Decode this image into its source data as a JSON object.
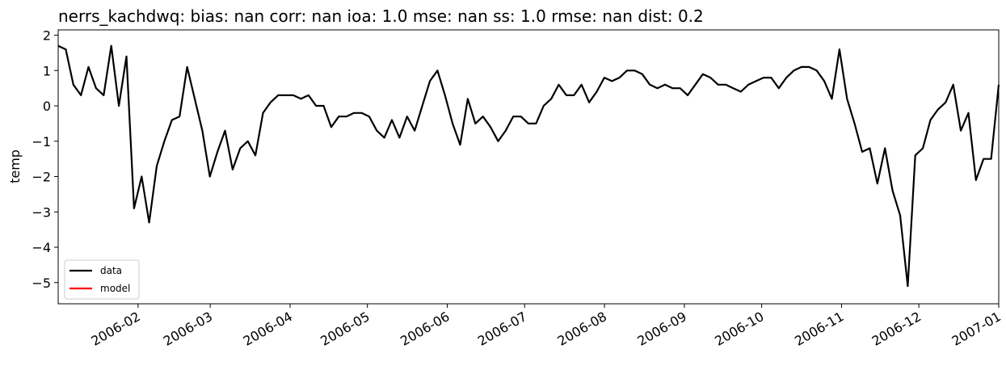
{
  "chart_data": {
    "type": "line",
    "title": "nerrs_kachdwq: bias: nan  corr: nan  ioa: 1.0  mse: nan  ss: 1.0  rmse: nan  dist: 0.2",
    "ylabel": "temp",
    "xlim": [
      "2006-01",
      "2007-01"
    ],
    "xticks": [
      "2006-02",
      "2006-03",
      "2006-04",
      "2006-05",
      "2006-06",
      "2006-07",
      "2006-08",
      "2006-09",
      "2006-10",
      "2006-11",
      "2006-12",
      "2007-01"
    ],
    "ylim": [
      -5.6,
      2.15
    ],
    "yticks": [
      {
        "value": -5,
        "label": "−5"
      },
      {
        "value": -4,
        "label": "−4"
      },
      {
        "value": -3,
        "label": "−3"
      },
      {
        "value": -2,
        "label": "−2"
      },
      {
        "value": -1,
        "label": "−1"
      },
      0,
      1,
      2
    ],
    "grid": false,
    "legend": "lower left",
    "series": [
      {
        "name": "data",
        "color": "#000000",
        "values": [
          1.7,
          1.6,
          0.6,
          0.3,
          1.1,
          0.5,
          0.3,
          1.7,
          0.0,
          1.4,
          -2.9,
          -2.0,
          -3.3,
          -1.7,
          -1.0,
          -0.4,
          -0.3,
          1.1,
          0.2,
          -0.7,
          -2.0,
          -1.3,
          -0.7,
          -1.8,
          -1.2,
          -1.0,
          -1.4,
          -0.2,
          0.1,
          0.3,
          0.3,
          0.3,
          0.2,
          0.3,
          0.0,
          0.0,
          -0.6,
          -0.3,
          -0.3,
          -0.2,
          -0.2,
          -0.3,
          -0.7,
          -0.9,
          -0.4,
          -0.9,
          -0.3,
          -0.7,
          0.0,
          0.7,
          1.0,
          0.3,
          -0.5,
          -1.1,
          0.2,
          -0.5,
          -0.3,
          -0.6,
          -1.0,
          -0.7,
          -0.3,
          -0.3,
          -0.5,
          -0.5,
          0.0,
          0.2,
          0.6,
          0.3,
          0.3,
          0.6,
          0.1,
          0.4,
          0.8,
          0.7,
          0.8,
          1.0,
          1.0,
          0.9,
          0.6,
          0.5,
          0.6,
          0.5,
          0.5,
          0.3,
          0.6,
          0.9,
          0.8,
          0.6,
          0.6,
          0.5,
          0.4,
          0.6,
          0.7,
          0.8,
          0.8,
          0.5,
          0.8,
          1.0,
          1.1,
          1.1,
          1.0,
          0.7,
          0.2,
          1.6,
          0.2,
          -0.5,
          -1.3,
          -1.2,
          -2.2,
          -1.2,
          -2.4,
          -3.1,
          -5.1,
          -1.4,
          -1.2,
          -0.4,
          -0.1,
          0.1,
          0.6,
          -0.7,
          -0.2,
          -2.1,
          -1.5,
          -1.5,
          0.6
        ]
      },
      {
        "name": "model",
        "color": "#ff0000",
        "values": [
          null,
          null,
          null,
          null,
          null,
          null,
          null,
          null,
          null,
          null,
          null,
          null,
          null,
          null,
          null,
          null,
          null,
          null,
          null,
          null,
          null,
          null,
          null,
          null,
          null,
          null,
          null,
          null,
          null,
          null,
          null,
          null,
          null,
          null,
          null,
          null,
          null,
          null,
          null,
          null,
          null,
          null,
          null,
          null,
          null,
          null,
          null,
          null,
          null,
          null,
          null,
          null,
          null,
          null,
          null,
          null,
          null,
          null,
          null,
          null,
          null,
          null,
          null,
          null,
          null,
          null,
          null,
          null,
          null,
          null,
          null,
          null,
          null,
          null,
          null,
          null,
          null,
          null,
          null,
          null,
          null,
          null,
          null,
          null,
          null,
          null,
          null,
          null,
          null,
          null,
          null,
          null,
          null,
          null,
          null,
          null,
          null,
          null,
          null,
          null,
          null,
          null,
          null,
          null,
          null,
          null,
          null,
          null,
          null,
          null,
          null,
          null,
          null,
          null,
          null,
          null,
          null,
          null,
          null,
          null,
          null,
          null,
          null,
          null,
          null
        ]
      }
    ]
  }
}
